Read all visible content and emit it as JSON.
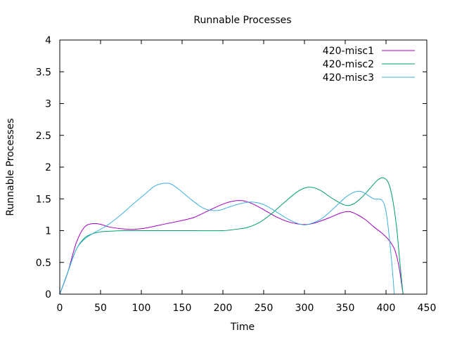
{
  "chart_data": {
    "type": "line",
    "title": "Runnable Processes",
    "xlabel": "Time",
    "ylabel": "Runnable Processes",
    "xlim": [
      0,
      450
    ],
    "ylim": [
      0,
      4
    ],
    "xticks": [
      0,
      50,
      100,
      150,
      200,
      250,
      300,
      350,
      400,
      450
    ],
    "xtick_labels": [
      "0",
      "50",
      "100",
      "150",
      "200",
      "250",
      "300",
      "350",
      "400",
      "450"
    ],
    "yticks": [
      0,
      0.5,
      1,
      1.5,
      2,
      2.5,
      3,
      3.5,
      4
    ],
    "ytick_labels": [
      "0",
      "0.5",
      "1",
      "1.5",
      "2",
      "2.5",
      "3",
      "3.5",
      "4"
    ],
    "grid": false,
    "legend_position": "top-right",
    "series": [
      {
        "name": "420-misc1",
        "color": "#a000c0",
        "points": [
          [
            0,
            0
          ],
          [
            10,
            0.35
          ],
          [
            20,
            0.8
          ],
          [
            30,
            1.05
          ],
          [
            40,
            1.11
          ],
          [
            50,
            1.1
          ],
          [
            60,
            1.06
          ],
          [
            75,
            1.03
          ],
          [
            90,
            1.02
          ],
          [
            105,
            1.04
          ],
          [
            120,
            1.08
          ],
          [
            135,
            1.12
          ],
          [
            150,
            1.16
          ],
          [
            165,
            1.21
          ],
          [
            180,
            1.3
          ],
          [
            195,
            1.39
          ],
          [
            205,
            1.44
          ],
          [
            215,
            1.47
          ],
          [
            225,
            1.47
          ],
          [
            235,
            1.43
          ],
          [
            250,
            1.33
          ],
          [
            265,
            1.22
          ],
          [
            280,
            1.14
          ],
          [
            295,
            1.1
          ],
          [
            305,
            1.1
          ],
          [
            315,
            1.13
          ],
          [
            330,
            1.2
          ],
          [
            345,
            1.28
          ],
          [
            355,
            1.3
          ],
          [
            365,
            1.25
          ],
          [
            375,
            1.17
          ],
          [
            385,
            1.06
          ],
          [
            395,
            0.96
          ],
          [
            403,
            0.86
          ],
          [
            410,
            0.72
          ],
          [
            414,
            0.55
          ],
          [
            417,
            0.35
          ],
          [
            420,
            0.08
          ],
          [
            421,
            0
          ]
        ]
      },
      {
        "name": "420-misc2",
        "color": "#00a060",
        "points": [
          [
            0,
            0
          ],
          [
            10,
            0.35
          ],
          [
            20,
            0.7
          ],
          [
            30,
            0.88
          ],
          [
            40,
            0.95
          ],
          [
            50,
            0.98
          ],
          [
            60,
            0.99
          ],
          [
            80,
            1.0
          ],
          [
            120,
            1.0
          ],
          [
            160,
            1.0
          ],
          [
            200,
            1.0
          ],
          [
            215,
            1.02
          ],
          [
            230,
            1.05
          ],
          [
            245,
            1.13
          ],
          [
            260,
            1.27
          ],
          [
            275,
            1.44
          ],
          [
            290,
            1.6
          ],
          [
            300,
            1.67
          ],
          [
            310,
            1.68
          ],
          [
            320,
            1.63
          ],
          [
            335,
            1.5
          ],
          [
            350,
            1.4
          ],
          [
            360,
            1.42
          ],
          [
            370,
            1.52
          ],
          [
            380,
            1.66
          ],
          [
            390,
            1.8
          ],
          [
            397,
            1.83
          ],
          [
            403,
            1.75
          ],
          [
            408,
            1.5
          ],
          [
            413,
            1.05
          ],
          [
            417,
            0.5
          ],
          [
            420,
            0.1
          ],
          [
            421,
            0
          ]
        ]
      },
      {
        "name": "420-misc3",
        "color": "#40b0e0",
        "points": [
          [
            0,
            0
          ],
          [
            10,
            0.35
          ],
          [
            20,
            0.7
          ],
          [
            30,
            0.86
          ],
          [
            40,
            0.95
          ],
          [
            50,
            1.02
          ],
          [
            60,
            1.1
          ],
          [
            75,
            1.25
          ],
          [
            90,
            1.42
          ],
          [
            105,
            1.58
          ],
          [
            115,
            1.69
          ],
          [
            125,
            1.74
          ],
          [
            135,
            1.74
          ],
          [
            145,
            1.66
          ],
          [
            160,
            1.5
          ],
          [
            175,
            1.36
          ],
          [
            185,
            1.32
          ],
          [
            195,
            1.32
          ],
          [
            205,
            1.36
          ],
          [
            220,
            1.42
          ],
          [
            235,
            1.45
          ],
          [
            250,
            1.41
          ],
          [
            265,
            1.3
          ],
          [
            280,
            1.18
          ],
          [
            295,
            1.1
          ],
          [
            305,
            1.1
          ],
          [
            320,
            1.18
          ],
          [
            335,
            1.34
          ],
          [
            350,
            1.52
          ],
          [
            360,
            1.6
          ],
          [
            368,
            1.62
          ],
          [
            375,
            1.58
          ],
          [
            385,
            1.5
          ],
          [
            395,
            1.48
          ],
          [
            400,
            1.3
          ],
          [
            404,
            0.9
          ],
          [
            407,
            0.5
          ],
          [
            409,
            0.2
          ],
          [
            410,
            0
          ]
        ]
      }
    ]
  }
}
